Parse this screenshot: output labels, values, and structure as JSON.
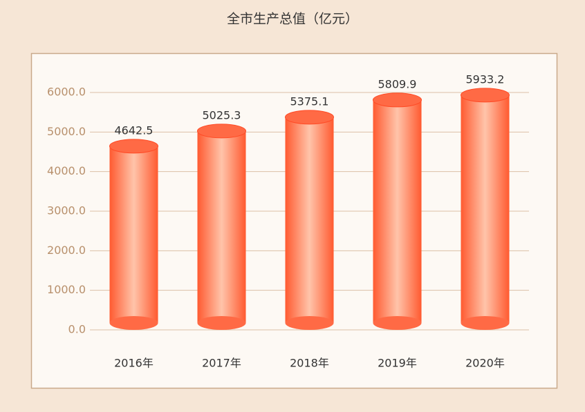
{
  "chart_data": {
    "type": "bar",
    "title": "全市生产总值（亿元）",
    "categories": [
      "2016年",
      "2017年",
      "2018年",
      "2019年",
      "2020年"
    ],
    "values": [
      4642.5,
      5025.3,
      5375.1,
      5809.9,
      5933.2
    ],
    "color": "#ff6a45",
    "ylim": [
      0,
      6000
    ],
    "yticks": [
      {
        "value": 0,
        "label": "0.0"
      },
      {
        "value": 1000,
        "label": "1000.0"
      },
      {
        "value": 2000,
        "label": "2000.0"
      },
      {
        "value": 3000,
        "label": "3000.0"
      },
      {
        "value": 4000,
        "label": "4000.0"
      },
      {
        "value": 5000,
        "label": "5000.0"
      },
      {
        "value": 6000,
        "label": "6000.0"
      }
    ],
    "grid": true
  }
}
